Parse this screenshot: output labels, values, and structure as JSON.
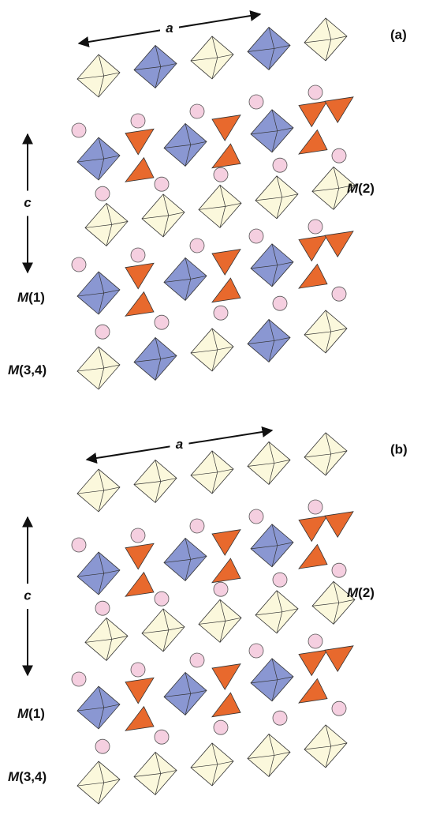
{
  "panels": [
    {
      "label": "(a)",
      "axis_a": "a",
      "axis_c": "c",
      "sites": [
        {
          "symbol": "M",
          "index": "(2)"
        },
        {
          "symbol": "M",
          "index": "(1)"
        },
        {
          "symbol": "M",
          "index": "(3,4)"
        }
      ]
    },
    {
      "label": "(b)",
      "axis_a": "a",
      "axis_c": "c",
      "sites": [
        {
          "symbol": "M",
          "index": "(2)"
        },
        {
          "symbol": "M",
          "index": "(1)"
        },
        {
          "symbol": "M",
          "index": "(3,4)"
        }
      ]
    }
  ]
}
